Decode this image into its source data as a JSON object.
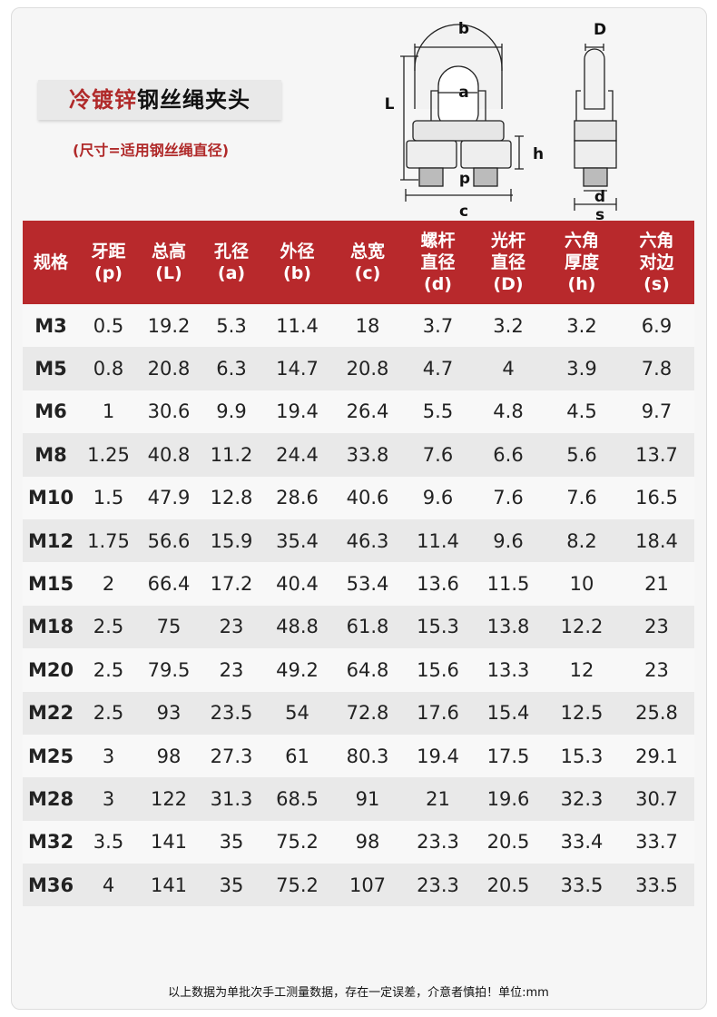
{
  "title": {
    "red": "冷镀锌",
    "black": "钢丝绳夹头"
  },
  "subtitle": "(尺寸=适用钢丝绳直径)",
  "diagram_labels": {
    "b": "b",
    "L": "L",
    "a": "a",
    "h": "h",
    "p": "p",
    "c": "c",
    "D": "D",
    "d": "d",
    "s": "s"
  },
  "columns": [
    [
      "规格",
      ""
    ],
    [
      "牙距",
      "(p)"
    ],
    [
      "总高",
      "(L)"
    ],
    [
      "孔径",
      "(a)"
    ],
    [
      "外径",
      "(b)"
    ],
    [
      "总宽",
      "(c)"
    ],
    [
      "螺杆",
      "直径",
      "(d)"
    ],
    [
      "光杆",
      "直径",
      "(D)"
    ],
    [
      "六角",
      "厚度",
      "(h)"
    ],
    [
      "六角",
      "对边",
      "(s)"
    ]
  ],
  "rows": [
    [
      "M3",
      "0.5",
      "19.2",
      "5.3",
      "11.4",
      "18",
      "3.7",
      "3.2",
      "3.2",
      "6.9"
    ],
    [
      "M5",
      "0.8",
      "20.8",
      "6.3",
      "14.7",
      "20.8",
      "4.7",
      "4",
      "3.9",
      "7.8"
    ],
    [
      "M6",
      "1",
      "30.6",
      "9.9",
      "19.4",
      "26.4",
      "5.5",
      "4.8",
      "4.5",
      "9.7"
    ],
    [
      "M8",
      "1.25",
      "40.8",
      "11.2",
      "24.4",
      "33.8",
      "7.6",
      "6.6",
      "5.6",
      "13.7"
    ],
    [
      "M10",
      "1.5",
      "47.9",
      "12.8",
      "28.6",
      "40.6",
      "9.6",
      "7.6",
      "7.6",
      "16.5"
    ],
    [
      "M12",
      "1.75",
      "56.6",
      "15.9",
      "35.4",
      "46.3",
      "11.4",
      "9.6",
      "8.2",
      "18.4"
    ],
    [
      "M15",
      "2",
      "66.4",
      "17.2",
      "40.4",
      "53.4",
      "13.6",
      "11.5",
      "10",
      "21"
    ],
    [
      "M18",
      "2.5",
      "75",
      "23",
      "48.8",
      "61.8",
      "15.3",
      "13.8",
      "12.2",
      "23"
    ],
    [
      "M20",
      "2.5",
      "79.5",
      "23",
      "49.2",
      "64.8",
      "15.6",
      "13.3",
      "12",
      "23"
    ],
    [
      "M22",
      "2.5",
      "93",
      "23.5",
      "54",
      "72.8",
      "17.6",
      "15.4",
      "12.5",
      "25.8"
    ],
    [
      "M25",
      "3",
      "98",
      "27.3",
      "61",
      "80.3",
      "19.4",
      "17.5",
      "15.3",
      "29.1"
    ],
    [
      "M28",
      "3",
      "122",
      "31.3",
      "68.5",
      "91",
      "21",
      "19.6",
      "32.3",
      "30.7"
    ],
    [
      "M32",
      "3.5",
      "141",
      "35",
      "75.2",
      "98",
      "23.3",
      "20.5",
      "33.4",
      "33.7"
    ],
    [
      "M36",
      "4",
      "141",
      "35",
      "75.2",
      "107",
      "23.3",
      "20.5",
      "33.5",
      "33.5"
    ]
  ],
  "footer": "以上数据为单批次手工测量数据，存在一定误差，介意者慎拍！单位:mm"
}
